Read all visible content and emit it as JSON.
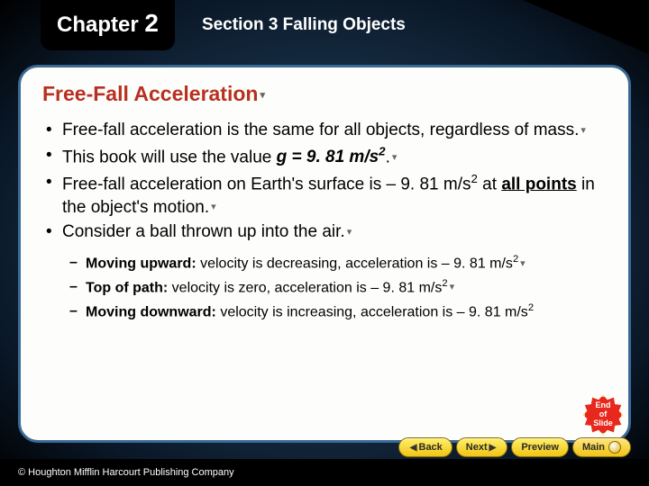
{
  "header": {
    "chapter_word": "Chapter",
    "chapter_number": "2",
    "section_label": "Section 3  Falling Objects"
  },
  "title": "Free-Fall Acceleration",
  "bullets": {
    "b1": "Free-fall acceleration is the same for all objects, regardless of mass.",
    "b2_pre": "This book will use the value ",
    "b2_g": "g",
    "b2_eq": " = 9. 81 m/s",
    "b2_sup": "2",
    "b2_post": ".",
    "b3_pre": "Free-fall acceleration on Earth's surface is – 9. 81 m/s",
    "b3_sup": "2",
    "b3_mid": " at ",
    "b3_under": "all points",
    "b3_post": " in the object's motion.",
    "b4": "Consider a ball thrown up into the air."
  },
  "sub": {
    "s1_lead": "Moving upward:",
    "s1_rest": " velocity is decreasing, acceleration is – 9. 81 m/s",
    "s1_sup": "2",
    "s2_lead": "Top of path:",
    "s2_rest": " velocity is zero, acceleration is – 9. 81 m/s",
    "s2_sup": "2",
    "s3_lead": "Moving downward:",
    "s3_rest": "  velocity is increasing, acceleration is – 9. 81 m/s",
    "s3_sup": "2"
  },
  "end_badge": {
    "l1": "End",
    "l2": "of",
    "l3": "Slide"
  },
  "nav": {
    "back": "Back",
    "next": "Next",
    "preview": "Preview",
    "main": "Main"
  },
  "copyright": "© Houghton Mifflin Harcourt Publishing Company",
  "colors": {
    "title": "#b83020",
    "panel_border": "#3a6a94",
    "btn_grad_top": "#fff06a",
    "btn_grad_bot": "#f0c414",
    "end_bg": "#e8281c"
  }
}
